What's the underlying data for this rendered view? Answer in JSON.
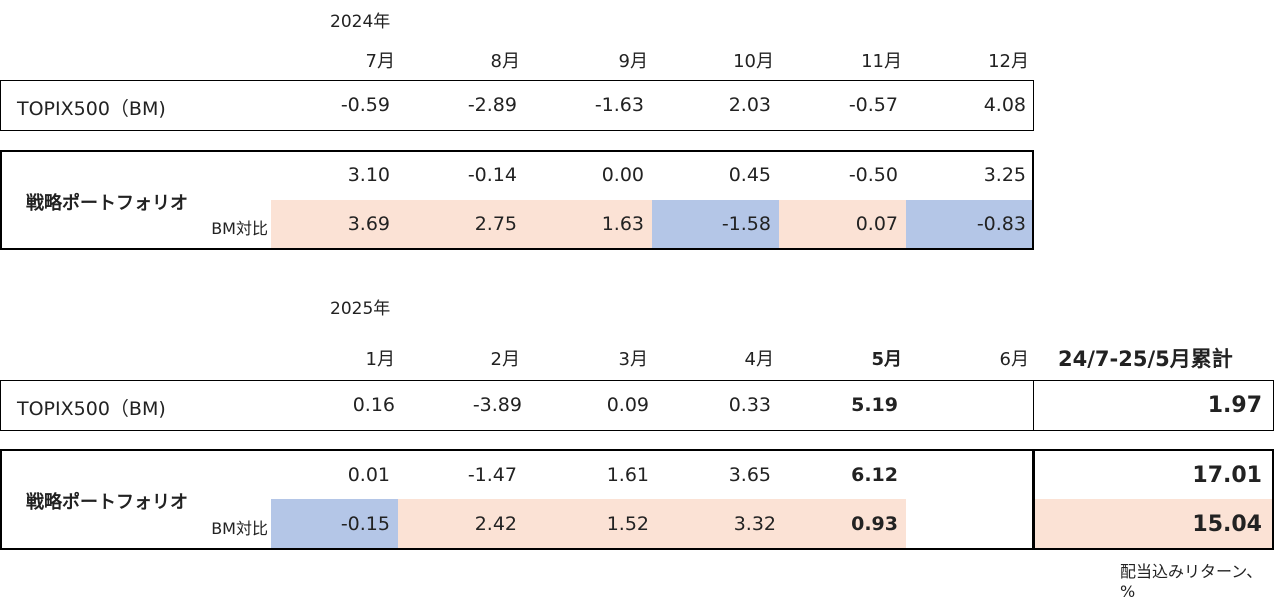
{
  "colors": {
    "positive_bg": "#fbe2d5",
    "negative_bg": "#b4c6e7"
  },
  "year2024": {
    "year_label": "2024年",
    "months": [
      "7月",
      "8月",
      "9月",
      "10月",
      "11月",
      "12月"
    ],
    "bm_label": "TOPIX500（BM)",
    "bm_values": [
      "-0.59",
      "-2.89",
      "-1.63",
      "2.03",
      "-0.57",
      "4.08"
    ],
    "portfolio_label": "戦略ポートフォリオ",
    "portfolio_values": [
      "3.10",
      "-0.14",
      "0.00",
      "0.45",
      "-0.50",
      "3.25"
    ],
    "diff_label": "BM対比",
    "diff_values": [
      "3.69",
      "2.75",
      "1.63",
      "-1.58",
      "0.07",
      "-0.83"
    ]
  },
  "year2025": {
    "year_label": "2025年",
    "months": [
      "1月",
      "2月",
      "3月",
      "4月",
      "5月",
      "6月"
    ],
    "bm_label": "TOPIX500（BM)",
    "bm_values": [
      "0.16",
      "-3.89",
      "0.09",
      "0.33",
      "5.19",
      ""
    ],
    "portfolio_label": "戦略ポートフォリオ",
    "portfolio_values": [
      "0.01",
      "-1.47",
      "1.61",
      "3.65",
      "6.12",
      ""
    ],
    "diff_label": "BM対比",
    "diff_values": [
      "-0.15",
      "2.42",
      "1.52",
      "3.32",
      "0.93",
      ""
    ]
  },
  "cumulative": {
    "header": "24/7-25/5月累計",
    "bm": "1.97",
    "portfolio": "17.01",
    "diff": "15.04"
  },
  "footnote": "配当込みリターン、%"
}
